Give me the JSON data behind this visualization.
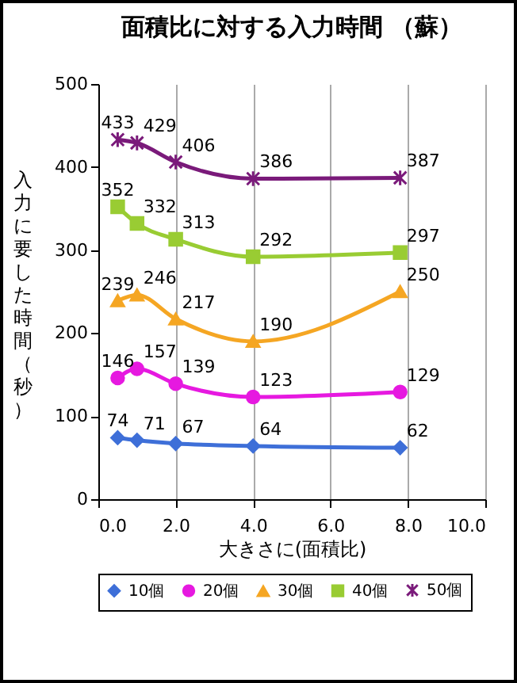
{
  "chart_data": {
    "type": "line",
    "title": "面積比に対する入力時間 （蘇）",
    "xlabel": "大きさに(面積比)",
    "ylabel": "入力に要した時間（秒）",
    "x": [
      0.5,
      1.0,
      2.0,
      4.0,
      7.8
    ],
    "series": [
      {
        "name": "10個",
        "color": "#3e6fd8",
        "marker": "diamond",
        "values": [
          74,
          71,
          67,
          64,
          62
        ]
      },
      {
        "name": "20個",
        "color": "#e619e0",
        "marker": "circle",
        "values": [
          146,
          157,
          139,
          123,
          129
        ]
      },
      {
        "name": "30個",
        "color": "#f5a623",
        "marker": "triangle",
        "values": [
          239,
          246,
          217,
          190,
          250
        ]
      },
      {
        "name": "40個",
        "color": "#99cc33",
        "marker": "square",
        "values": [
          352,
          332,
          313,
          292,
          297
        ]
      },
      {
        "name": "50個",
        "color": "#7a1a7a",
        "marker": "cross",
        "values": [
          433,
          429,
          406,
          386,
          387
        ]
      }
    ],
    "xlim": [
      0,
      10
    ],
    "xticks": [
      {
        "value": 0,
        "label": "0.0"
      },
      {
        "value": 2,
        "label": "2.0"
      },
      {
        "value": 4,
        "label": "4.0"
      },
      {
        "value": 6,
        "label": "6.0"
      },
      {
        "value": 8,
        "label": "8.0"
      },
      {
        "value": 10,
        "label": "10.0"
      }
    ],
    "ylim": [
      0,
      500
    ],
    "yticks": [
      0,
      100,
      200,
      300,
      400,
      500
    ],
    "grid": "x",
    "legend": "bottom",
    "data_labels": true
  }
}
